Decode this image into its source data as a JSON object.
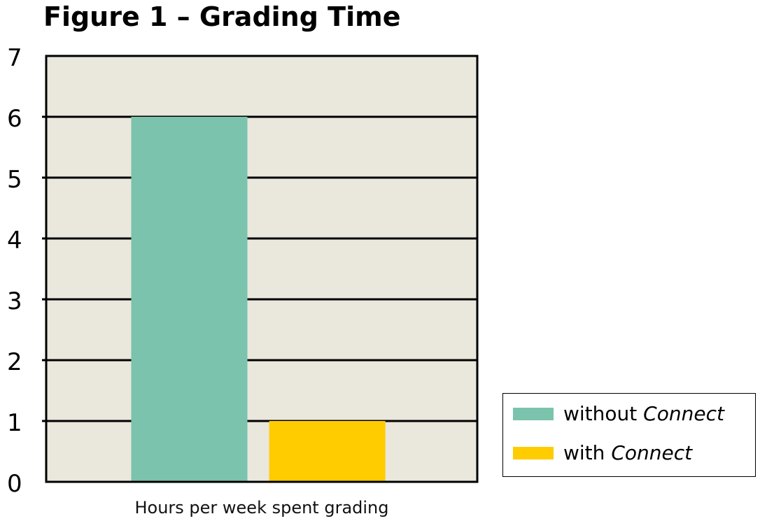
{
  "chart_data": {
    "type": "bar",
    "title": "Figure 1 – Grading Time",
    "xlabel": "Hours per week spent grading",
    "ylabel": "",
    "ylim": [
      0,
      7
    ],
    "yticks": [
      "0",
      "1",
      "2",
      "3",
      "4",
      "5",
      "6",
      "7"
    ],
    "grid": true,
    "legend_position": "bottom-right",
    "background_color": "#EAE7DC",
    "series": [
      {
        "name_prefix": "without ",
        "name_emph": "Connect",
        "value": 6,
        "color": "#7BC3AC"
      },
      {
        "name_prefix": "with ",
        "name_emph": "Connect",
        "value": 1,
        "color": "#FFCC00"
      }
    ]
  }
}
